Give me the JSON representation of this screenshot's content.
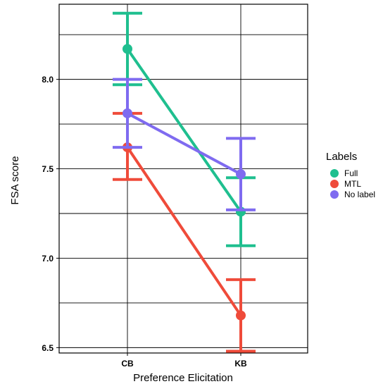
{
  "chart_data": {
    "type": "line",
    "categories": [
      "CB",
      "KB"
    ],
    "xlabel": "Preference Elicitation",
    "ylabel": "FSA score",
    "ylim": [
      6.47,
      8.42
    ],
    "yticks": [
      "6.5",
      "7.0",
      "7.5",
      "8.0"
    ],
    "ytick_values": [
      6.5,
      7.0,
      7.5,
      8.0
    ],
    "grid": true,
    "legend_title": "Labels",
    "legend_position": "right",
    "series": [
      {
        "name": "Full",
        "color": "#1fbf8f",
        "values": [
          8.17,
          7.26
        ],
        "err_low": [
          7.97,
          7.07
        ],
        "err_high": [
          8.37,
          7.45
        ]
      },
      {
        "name": "MTL",
        "color": "#ef4b3a",
        "values": [
          7.62,
          6.68
        ],
        "err_low": [
          7.44,
          6.48
        ],
        "err_high": [
          7.81,
          6.88
        ]
      },
      {
        "name": "No label",
        "color": "#7f6bf0",
        "values": [
          7.81,
          7.47
        ],
        "err_low": [
          7.62,
          7.27
        ],
        "err_high": [
          8.0,
          7.67
        ]
      }
    ]
  }
}
